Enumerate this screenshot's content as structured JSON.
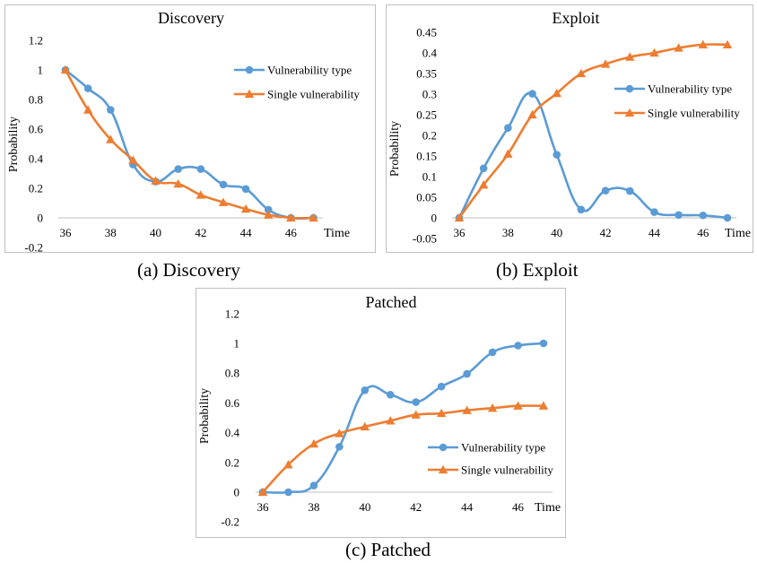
{
  "chart_data": [
    {
      "type": "line",
      "title": "Discovery",
      "xlabel": "Time",
      "ylabel": "Probability",
      "xlim": [
        36,
        47
      ],
      "ylim": [
        -0.2,
        1.2
      ],
      "y_ticks": [
        "-0.2",
        "0",
        "0.2",
        "0.4",
        "0.6",
        "0.8",
        "1",
        "1.2"
      ],
      "x_ticks": [
        "36",
        "38",
        "40",
        "42",
        "44",
        "46"
      ],
      "legend": "right",
      "grid": false,
      "x": [
        36,
        37,
        38,
        39,
        40,
        41,
        42,
        43,
        44,
        45,
        46,
        47
      ],
      "series": [
        {
          "name": "Vulnerability type",
          "marker": "circle",
          "color": "#5B9BD5",
          "values": [
            1.0,
            0.875,
            0.73,
            0.36,
            0.245,
            0.33,
            0.33,
            0.225,
            0.195,
            0.055,
            0.0,
            0.0
          ]
        },
        {
          "name": "Single vulnerability",
          "marker": "triangle",
          "color": "#ED7D31",
          "values": [
            1.0,
            0.73,
            0.53,
            0.39,
            0.25,
            0.23,
            0.155,
            0.105,
            0.06,
            0.02,
            0.0,
            0.0
          ]
        }
      ]
    },
    {
      "type": "line",
      "title": "Exploit",
      "xlabel": "Time",
      "ylabel": "Probability",
      "xlim": [
        36,
        48
      ],
      "ylim": [
        -0.05,
        0.45
      ],
      "y_ticks": [
        "-0.05",
        "0",
        "0.05",
        "0.1",
        "0.15",
        "0.2",
        "0.25",
        "0.3",
        "0.35",
        "0.4",
        "0.45"
      ],
      "x_ticks": [
        "36",
        "38",
        "40",
        "42",
        "44",
        "46"
      ],
      "legend": "right",
      "grid": false,
      "x": [
        36,
        37,
        38,
        39,
        40,
        41,
        42,
        43,
        44,
        45,
        46,
        47
      ],
      "series": [
        {
          "name": "Vulnerability type",
          "marker": "circle",
          "color": "#5B9BD5",
          "values": [
            0.0,
            0.12,
            0.218,
            0.301,
            0.153,
            0.02,
            0.066,
            0.065,
            0.014,
            0.007,
            0.006,
            0.0
          ]
        },
        {
          "name": "Single vulnerability",
          "marker": "triangle",
          "color": "#ED7D31",
          "values": [
            0.0,
            0.08,
            0.155,
            0.25,
            0.302,
            0.35,
            0.373,
            0.39,
            0.4,
            0.412,
            0.42,
            0.42
          ]
        }
      ]
    },
    {
      "type": "line",
      "title": "Patched",
      "xlabel": "Time",
      "ylabel": "Probability",
      "xlim": [
        36,
        47
      ],
      "ylim": [
        -0.2,
        1.2
      ],
      "y_ticks": [
        "-0.2",
        "0",
        "0.2",
        "0.4",
        "0.6",
        "0.8",
        "1",
        "1.2"
      ],
      "x_ticks": [
        "36",
        "38",
        "40",
        "42",
        "44",
        "46"
      ],
      "legend": "bottom-right",
      "grid": false,
      "x": [
        36,
        37,
        38,
        39,
        40,
        41,
        42,
        43,
        44,
        45,
        46,
        47
      ],
      "series": [
        {
          "name": "Vulnerability type",
          "marker": "circle",
          "color": "#5B9BD5",
          "values": [
            0.0,
            0.0,
            0.045,
            0.305,
            0.685,
            0.655,
            0.605,
            0.71,
            0.795,
            0.94,
            0.985,
            1.0
          ]
        },
        {
          "name": "Single vulnerability",
          "marker": "triangle",
          "color": "#ED7D31",
          "values": [
            0.0,
            0.185,
            0.325,
            0.395,
            0.44,
            0.48,
            0.52,
            0.53,
            0.55,
            0.565,
            0.58,
            0.58
          ]
        }
      ]
    }
  ],
  "captions": {
    "a": "(a) Discovery",
    "b": "(b) Exploit",
    "c": "(c) Patched"
  }
}
